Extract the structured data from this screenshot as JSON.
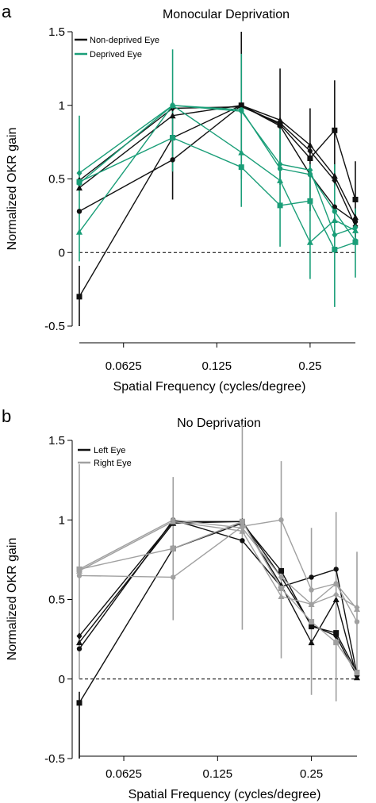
{
  "panels": [
    {
      "letter": "a",
      "title": "Monocular Deprivation"
    },
    {
      "letter": "b",
      "title": "No Deprivation"
    }
  ],
  "colors": {
    "nondeprived": "#111111",
    "deprived": "#1a9e78",
    "left": "#111111",
    "right": "#a0a0a0",
    "zero_line": "#000000"
  },
  "chart_data": [
    {
      "type": "line",
      "title": "Monocular Deprivation",
      "xlabel": "Spatial Frequency (cycles/degree)",
      "ylabel": "Normalized OKR gain",
      "x_scale": "log2",
      "x_ticks": [
        0.0625,
        0.125,
        0.25
      ],
      "x_tick_labels": [
        "0.0625",
        "0.125",
        "0.25"
      ],
      "x": [
        0.045,
        0.09,
        0.15,
        0.2,
        0.25,
        0.3,
        0.35
      ],
      "ylim": [
        -0.5,
        1.5
      ],
      "y_ticks": [
        -0.5,
        0,
        0.5,
        1,
        1.5
      ],
      "y_tick_labels": [
        "-0.5",
        "0",
        "0.5",
        "1",
        "1.5"
      ],
      "reference_line": {
        "y": 0,
        "style": "dashed"
      },
      "grid": false,
      "legend_position": "top-left",
      "legend": [
        {
          "label": "Non-deprived Eye",
          "color_key": "nondeprived"
        },
        {
          "label": "Deprived Eye",
          "color_key": "deprived"
        }
      ],
      "series": [
        {
          "group": "nondeprived",
          "marker": "square",
          "values": [
            -0.3,
            0.78,
            1.0,
            0.87,
            0.64,
            0.83,
            0.36
          ]
        },
        {
          "group": "nondeprived",
          "marker": "circle",
          "values": [
            0.28,
            0.63,
            1.0,
            0.86,
            0.53,
            0.31,
            0.21
          ]
        },
        {
          "group": "nondeprived",
          "marker": "triangle",
          "values": [
            0.44,
            0.93,
            1.0,
            0.9,
            0.73,
            0.52,
            0.24
          ]
        },
        {
          "group": "nondeprived",
          "marker": "diamond",
          "values": [
            0.49,
            0.98,
            0.99,
            0.88,
            0.69,
            0.49,
            0.18
          ]
        },
        {
          "group": "deprived",
          "marker": "square",
          "values": [
            0.48,
            0.78,
            0.58,
            0.32,
            0.35,
            0.02,
            0.07
          ]
        },
        {
          "group": "deprived",
          "marker": "triangle",
          "values": [
            0.14,
            1.0,
            0.68,
            0.49,
            0.07,
            0.22,
            0.15
          ]
        },
        {
          "group": "deprived",
          "marker": "diamond",
          "values": [
            0.54,
            1.0,
            0.96,
            0.6,
            0.56,
            0.12,
            0.17
          ]
        },
        {
          "group": "deprived",
          "marker": "circle",
          "values": [
            0.47,
            1.0,
            0.97,
            0.57,
            0.53,
            0.28,
            0.08
          ]
        }
      ],
      "error_bars": [
        {
          "group": "nondeprived",
          "x": 0.045,
          "low": -0.5,
          "high": -0.09
        },
        {
          "group": "nondeprived",
          "x": 0.09,
          "low": 0.36,
          "high": 1.02
        },
        {
          "group": "nondeprived",
          "x": 0.15,
          "low": 0.5,
          "high": 1.5
        },
        {
          "group": "nondeprived",
          "x": 0.2,
          "low": 0.46,
          "high": 1.25
        },
        {
          "group": "nondeprived",
          "x": 0.25,
          "low": 0.28,
          "high": 0.98
        },
        {
          "group": "nondeprived",
          "x": 0.3,
          "low": 0.45,
          "high": 1.17
        },
        {
          "group": "nondeprived",
          "x": 0.35,
          "low": 0.1,
          "high": 0.62
        },
        {
          "group": "deprived",
          "x": 0.045,
          "low": -0.06,
          "high": 0.93
        },
        {
          "group": "deprived",
          "x": 0.09,
          "low": 0.55,
          "high": 1.38
        },
        {
          "group": "deprived",
          "x": 0.15,
          "low": 0.31,
          "high": 1.35
        },
        {
          "group": "deprived",
          "x": 0.2,
          "low": 0.04,
          "high": 0.9
        },
        {
          "group": "deprived",
          "x": 0.25,
          "low": -0.18,
          "high": 0.6
        },
        {
          "group": "deprived",
          "x": 0.3,
          "low": -0.37,
          "high": 0.6
        },
        {
          "group": "deprived",
          "x": 0.35,
          "low": -0.17,
          "high": 0.3
        }
      ]
    },
    {
      "type": "line",
      "title": "No Deprivation",
      "xlabel": "Spatial Frequency (cycles/degree)",
      "ylabel": "Normalized OKR gain",
      "x_scale": "log2",
      "x_ticks": [
        0.0625,
        0.125,
        0.25
      ],
      "x_tick_labels": [
        "0.0625",
        "0.125",
        "0.25"
      ],
      "x": [
        0.045,
        0.09,
        0.15,
        0.2,
        0.25,
        0.3,
        0.35
      ],
      "ylim": [
        -0.5,
        1.5
      ],
      "y_ticks": [
        -0.5,
        0,
        0.5,
        1,
        1.5
      ],
      "y_tick_labels": [
        "-0.5",
        "0",
        "0.5",
        "1",
        "1.5"
      ],
      "reference_line": {
        "y": 0,
        "style": "dashed"
      },
      "grid": false,
      "legend_position": "top-left",
      "legend": [
        {
          "label": "Left Eye",
          "color_key": "left"
        },
        {
          "label": "Right Eye",
          "color_key": "right"
        }
      ],
      "series": [
        {
          "group": "left",
          "marker": "square",
          "values": [
            -0.15,
            0.82,
            0.98,
            0.68,
            0.33,
            0.29,
            0.04
          ]
        },
        {
          "group": "left",
          "marker": "circle",
          "values": [
            0.19,
            1.0,
            0.87,
            0.58,
            0.64,
            0.69,
            0.03
          ]
        },
        {
          "group": "left",
          "marker": "triangle",
          "values": [
            0.23,
            0.98,
            0.99,
            0.59,
            0.23,
            0.5,
            0.01
          ]
        },
        {
          "group": "left",
          "marker": "diamond",
          "values": [
            0.27,
            0.99,
            0.99,
            0.64,
            0.34,
            0.27,
            0.02
          ]
        },
        {
          "group": "right",
          "marker": "circle",
          "values": [
            0.65,
            0.64,
            0.96,
            1.0,
            0.56,
            0.6,
            0.36
          ]
        },
        {
          "group": "right",
          "marker": "triangle",
          "values": [
            0.68,
            0.99,
            0.93,
            0.52,
            0.47,
            0.6,
            0.44
          ]
        },
        {
          "group": "right",
          "marker": "diamond",
          "values": [
            0.69,
            1.0,
            0.95,
            0.64,
            0.47,
            0.53,
            0.45
          ]
        },
        {
          "group": "right",
          "marker": "square",
          "values": [
            0.69,
            0.82,
            0.99,
            0.57,
            0.36,
            0.23,
            0.04
          ]
        }
      ],
      "error_bars": [
        {
          "group": "left",
          "x": 0.045,
          "low": -0.5,
          "high": -0.08
        },
        {
          "group": "right",
          "x": 0.045,
          "low": 0.0,
          "high": 1.35
        },
        {
          "group": "right",
          "x": 0.09,
          "low": 0.37,
          "high": 1.27
        },
        {
          "group": "right",
          "x": 0.15,
          "low": 0.31,
          "high": 1.6
        },
        {
          "group": "right",
          "x": 0.2,
          "low": 0.13,
          "high": 1.37
        },
        {
          "group": "right",
          "x": 0.25,
          "low": -0.1,
          "high": 0.95
        },
        {
          "group": "right",
          "x": 0.3,
          "low": -0.14,
          "high": 1.05
        },
        {
          "group": "right",
          "x": 0.35,
          "low": 0.0,
          "high": 0.8
        }
      ]
    }
  ]
}
